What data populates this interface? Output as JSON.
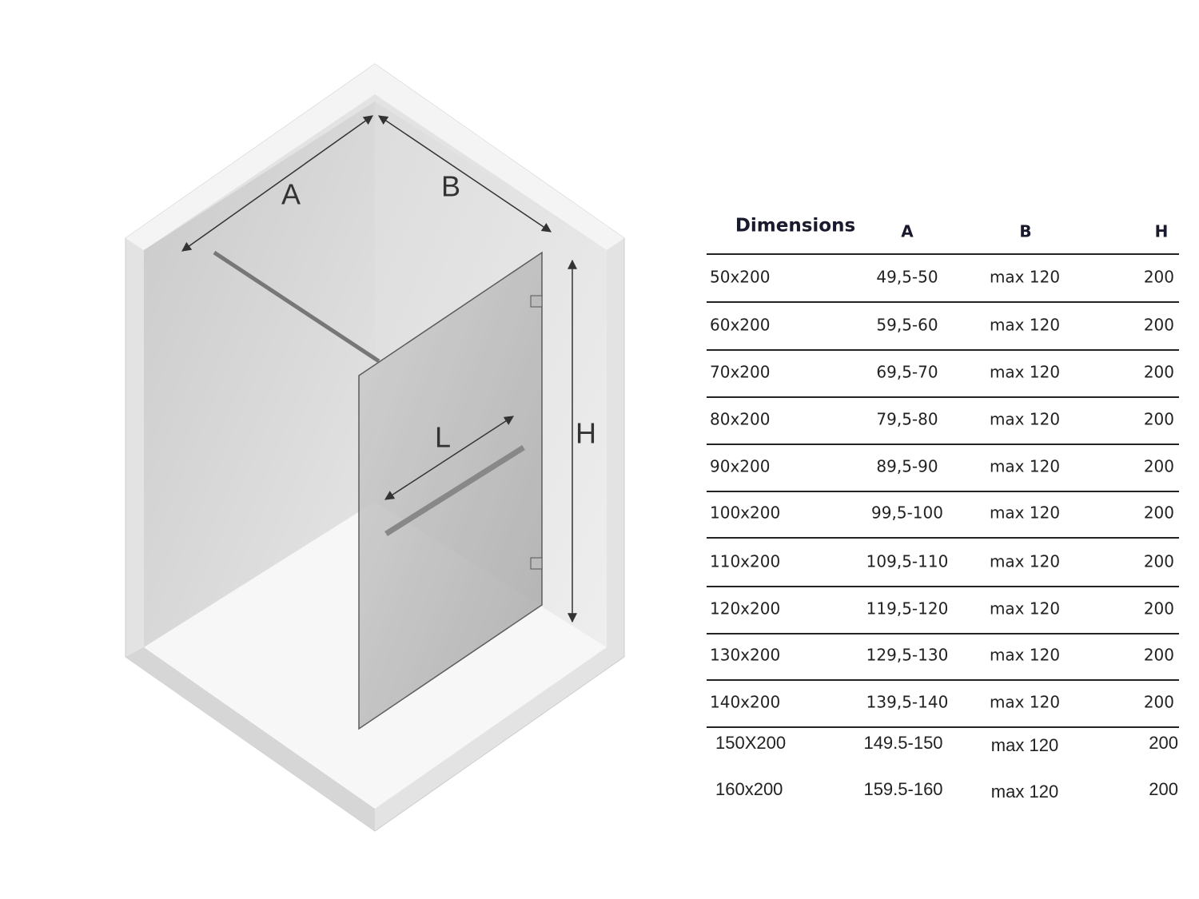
{
  "diagram": {
    "labels": {
      "a": "A",
      "b": "B",
      "l": "L",
      "h": "H"
    }
  },
  "table": {
    "title": "Dimensions",
    "columns": [
      "A",
      "B",
      "H"
    ],
    "rows": [
      [
        "50x200",
        "49,5-50",
        "max 120",
        "200"
      ],
      [
        "60x200",
        "59,5-60",
        "max 120",
        "200"
      ],
      [
        "70x200",
        "69,5-70",
        "max 120",
        "200"
      ],
      [
        "80x200",
        "79,5-80",
        "max 120",
        "200"
      ],
      [
        "90x200",
        "89,5-90",
        "max 120",
        "200"
      ],
      [
        "100x200",
        "99,5-100",
        "max 120",
        "200"
      ],
      [
        "110x200",
        "109,5-110",
        "max 120",
        "200"
      ],
      [
        "120x200",
        "119,5-120",
        "max 120",
        "200"
      ],
      [
        "130x200",
        "129,5-130",
        "max 120",
        "200"
      ],
      [
        "140x200",
        "139,5-140",
        "max 120",
        "200"
      ],
      [
        "150X200",
        "149.5-150",
        "max 120",
        "200"
      ],
      [
        "160x200",
        "159.5-160",
        "max 120",
        "200"
      ]
    ]
  }
}
